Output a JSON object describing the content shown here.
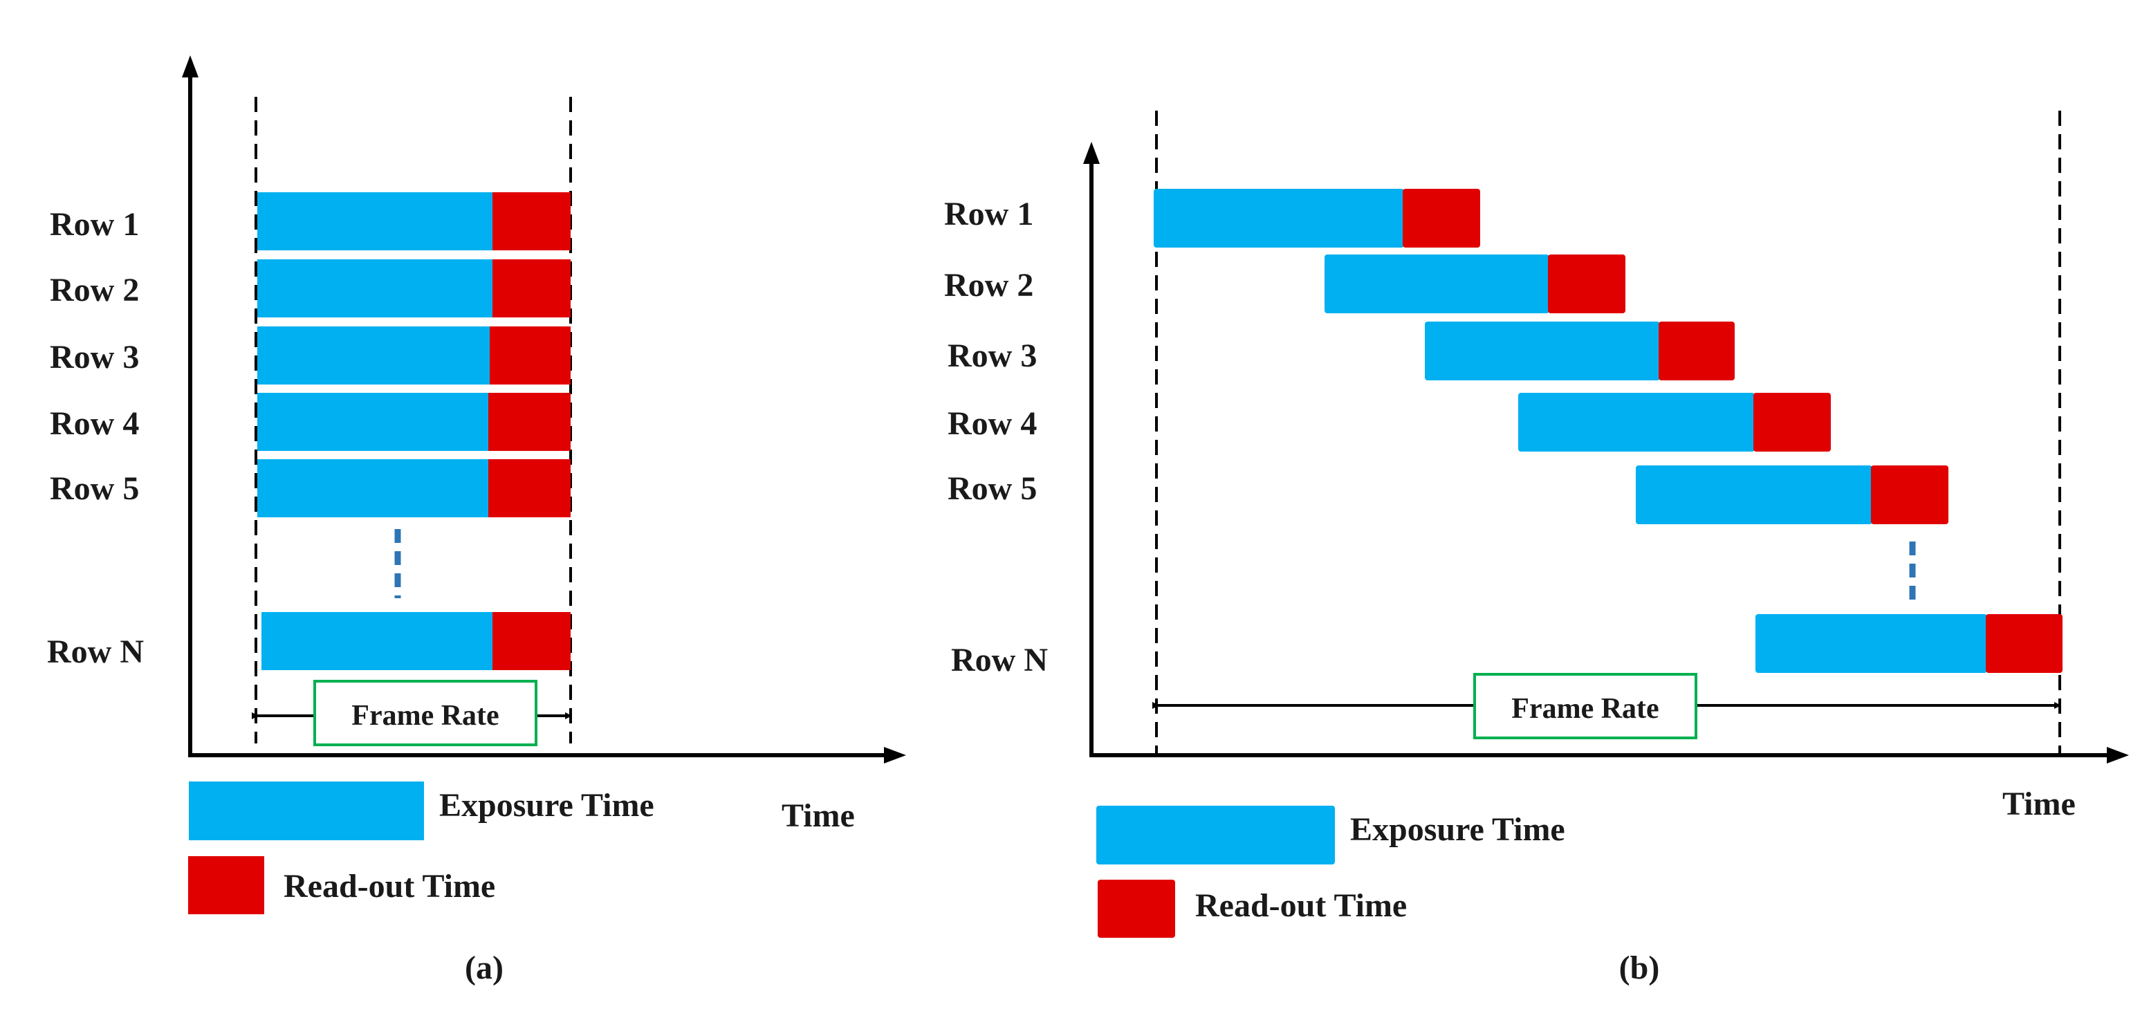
{
  "colors": {
    "exposure": "#00B0F0",
    "readout": "#E00000",
    "frame_box_border": "#00B050",
    "axis": "#000000",
    "ellipsis": "#2E75B6"
  },
  "panel_a": {
    "rows": [
      "Row 1",
      "Row 2",
      "Row 3",
      "Row 4",
      "Row 5",
      "Row N"
    ],
    "frame_rate_label": "Frame Rate",
    "time_label": "Time",
    "legend": {
      "exposure": "Exposure Time",
      "readout": "Read-out Time"
    },
    "caption": "(a)"
  },
  "panel_b": {
    "rows": [
      "Row 1",
      "Row 2",
      "Row 3",
      "Row 4",
      "Row 5",
      "Row N"
    ],
    "frame_rate_label": "Frame Rate",
    "time_label": "Time",
    "legend": {
      "exposure": "Exposure Time",
      "readout": "Read-out Time"
    },
    "caption": "(b)"
  }
}
